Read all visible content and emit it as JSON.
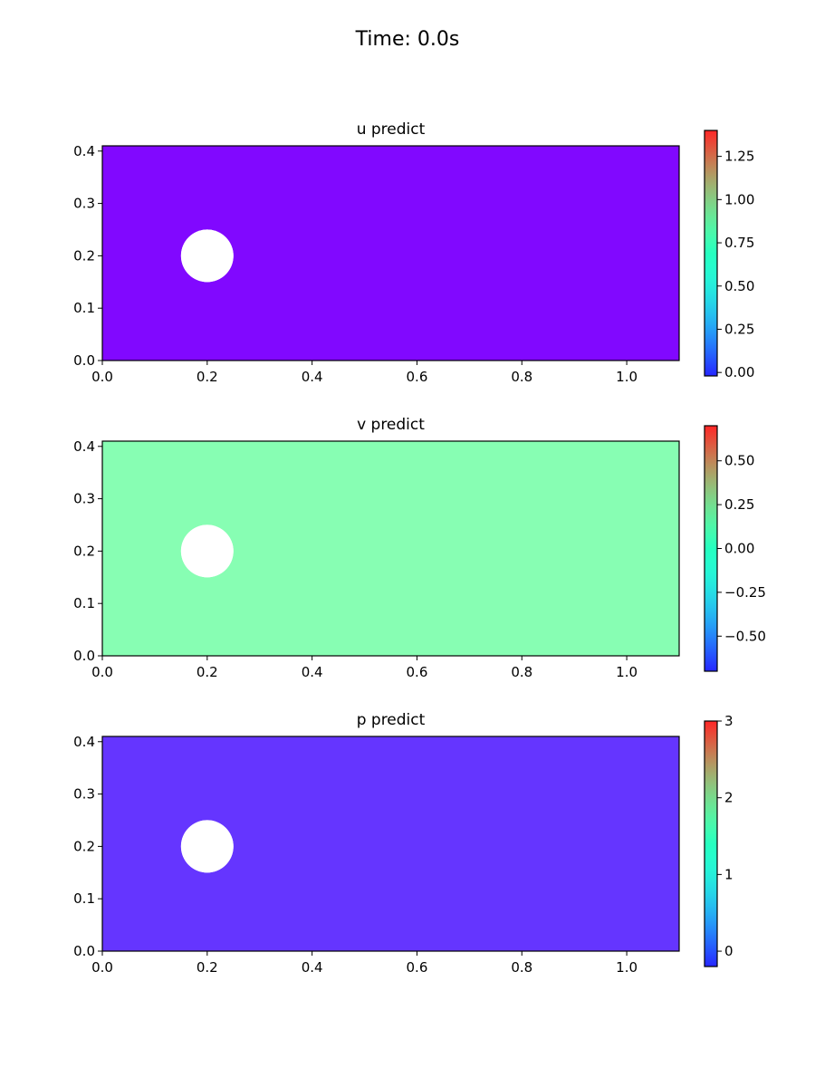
{
  "figure": {
    "title": "Time: 0.0s"
  },
  "chart_data": [
    {
      "type": "heatmap",
      "title": "u predict",
      "field": "u",
      "xlim": [
        0.0,
        1.1
      ],
      "ylim": [
        0.0,
        0.41
      ],
      "x_ticks": [
        0.0,
        0.2,
        0.4,
        0.6,
        0.8,
        1.0
      ],
      "x_tick_labels": [
        "0.0",
        "0.2",
        "0.4",
        "0.6",
        "0.8",
        "1.0"
      ],
      "y_ticks": [
        0.0,
        0.1,
        0.2,
        0.3,
        0.4
      ],
      "y_tick_labels": [
        "0.0",
        "0.1",
        "0.2",
        "0.3",
        "0.4"
      ],
      "obstacle": {
        "shape": "circle",
        "cx": 0.2,
        "cy": 0.2,
        "r": 0.05
      },
      "field_value": 0.0,
      "field_color": "#8108ff",
      "colorbar": {
        "colormap": "rainbow",
        "range": [
          -0.02,
          1.4
        ],
        "ticks": [
          0.0,
          0.25,
          0.5,
          0.75,
          1.0,
          1.25
        ],
        "tick_labels": [
          "0.00",
          "0.25",
          "0.50",
          "0.75",
          "1.00",
          "1.25"
        ]
      }
    },
    {
      "type": "heatmap",
      "title": "v predict",
      "field": "v",
      "xlim": [
        0.0,
        1.1
      ],
      "ylim": [
        0.0,
        0.41
      ],
      "x_ticks": [
        0.0,
        0.2,
        0.4,
        0.6,
        0.8,
        1.0
      ],
      "x_tick_labels": [
        "0.0",
        "0.2",
        "0.4",
        "0.6",
        "0.8",
        "1.0"
      ],
      "y_ticks": [
        0.0,
        0.1,
        0.2,
        0.3,
        0.4
      ],
      "y_tick_labels": [
        "0.0",
        "0.1",
        "0.2",
        "0.3",
        "0.4"
      ],
      "obstacle": {
        "shape": "circle",
        "cx": 0.2,
        "cy": 0.2,
        "r": 0.05
      },
      "field_value": 0.0,
      "field_color": "#87feb3",
      "colorbar": {
        "colormap": "rainbow",
        "range": [
          -0.7,
          0.7
        ],
        "ticks": [
          -0.5,
          -0.25,
          0.0,
          0.25,
          0.5
        ],
        "tick_labels": [
          "−0.50",
          "−0.25",
          "0.00",
          "0.25",
          "0.50"
        ]
      }
    },
    {
      "type": "heatmap",
      "title": "p predict",
      "field": "p",
      "xlim": [
        0.0,
        1.1
      ],
      "ylim": [
        0.0,
        0.41
      ],
      "x_ticks": [
        0.0,
        0.2,
        0.4,
        0.6,
        0.8,
        1.0
      ],
      "x_tick_labels": [
        "0.0",
        "0.2",
        "0.4",
        "0.6",
        "0.8",
        "1.0"
      ],
      "y_ticks": [
        0.0,
        0.1,
        0.2,
        0.3,
        0.4
      ],
      "y_tick_labels": [
        "0.0",
        "0.1",
        "0.2",
        "0.3",
        "0.4"
      ],
      "obstacle": {
        "shape": "circle",
        "cx": 0.2,
        "cy": 0.2,
        "r": 0.05
      },
      "field_value": 0.0,
      "field_color": "#6535ff",
      "colorbar": {
        "colormap": "rainbow",
        "range": [
          -0.2,
          3.0
        ],
        "ticks": [
          0,
          1,
          2,
          3
        ],
        "tick_labels": [
          "0",
          "1",
          "2",
          "3"
        ]
      }
    }
  ]
}
